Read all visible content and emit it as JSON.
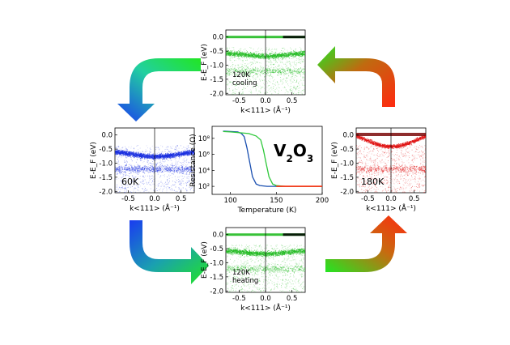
{
  "colors": {
    "green": "#22dd22",
    "blue": "#1a3cf0",
    "red": "#ff2a10",
    "curve_dark": "#1a4fb0",
    "curve_green": "#2ec83a",
    "curve_red": "#ff3010"
  },
  "panels": {
    "top": {
      "label_line1": "120K",
      "label_line2": "cooling",
      "color": "#22bb22"
    },
    "bottom": {
      "label_line1": "120K",
      "label_line2": "heating",
      "color": "#22bb22"
    },
    "left": {
      "label_line1": "60K",
      "label_line2": "",
      "color": "#1a2fe0"
    },
    "right": {
      "label_line1": "180K",
      "label_line2": "",
      "color": "#e01010"
    }
  },
  "arpes_axes": {
    "ylabel": "E-E_F (eV)",
    "xlabel": "k<111> (Å⁻¹)",
    "yticks": [
      "0.0",
      "-0.5",
      "-1.0",
      "-1.5",
      "-2.0"
    ],
    "xticks": [
      "-0.5",
      "0.0",
      "0.5"
    ]
  },
  "center": {
    "formula": "V",
    "formula_sub1": "2",
    "formula_mid": "O",
    "formula_sub2": "3"
  },
  "chart_data": {
    "type": "line",
    "title": "",
    "xlabel": "Temperature (K)",
    "ylabel": "Resistance (Ω)",
    "xlim": [
      80,
      200
    ],
    "ylim_log10": [
      1,
      9.5
    ],
    "x_ticks": [
      "100",
      "150",
      "200"
    ],
    "y_ticks": [
      "10²",
      "10⁴",
      "10⁶",
      "10⁸"
    ],
    "series": [
      {
        "color": "#1a4fb0",
        "x": [
          92,
          100,
          108,
          112,
          115,
          118,
          121,
          124,
          128,
          132,
          140,
          150,
          160,
          180,
          200
        ],
        "y": [
          8.9,
          8.85,
          8.8,
          8.6,
          8.2,
          6.8,
          5.0,
          3.2,
          2.3,
          2.1,
          2.0,
          2.0,
          2.0,
          2.0,
          2.0
        ]
      },
      {
        "color": "#2ec83a",
        "x": [
          92,
          100,
          110,
          120,
          128,
          133,
          136,
          139,
          142,
          146,
          150,
          160,
          180,
          200
        ],
        "y": [
          8.85,
          8.8,
          8.7,
          8.6,
          8.3,
          7.8,
          6.5,
          4.8,
          3.2,
          2.3,
          2.1,
          2.0,
          2.0,
          2.0
        ]
      },
      {
        "color": "#ff3010",
        "x": [
          150,
          160,
          180,
          200
        ],
        "y": [
          2.0,
          2.0,
          2.0,
          2.0
        ]
      }
    ]
  }
}
